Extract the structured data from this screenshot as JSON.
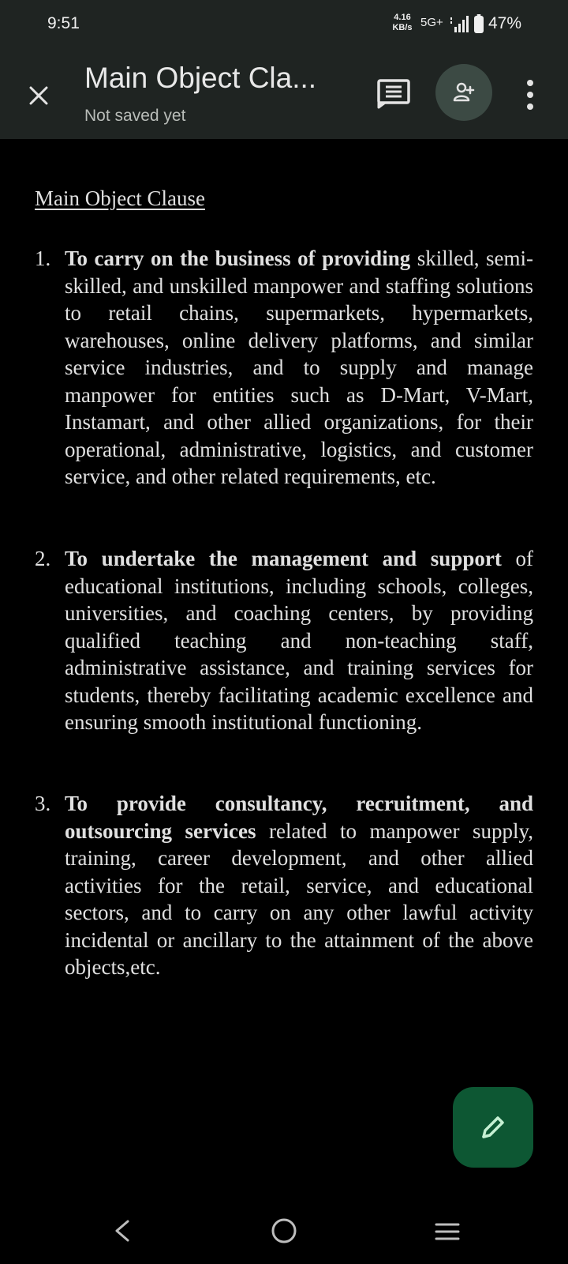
{
  "status_bar": {
    "time": "9:51",
    "net_speed_value": "4.16",
    "net_speed_unit": "KB/s",
    "network": "5G+",
    "battery": "47%"
  },
  "app_bar": {
    "title": "Main Object Cla...",
    "save_status": "Not saved yet",
    "icons": [
      "close-icon",
      "document-outline-icon",
      "add-person-icon",
      "more-vert-icon"
    ]
  },
  "document": {
    "heading": "Main Object Clause",
    "clauses": [
      {
        "number": "1.",
        "bold_lead": "To carry on the business of providing",
        "text": " skilled, semi-skilled, and unskilled manpower and staffing solutions to retail chains, supermarkets, hypermarkets, warehouses, online delivery platforms, and similar service industries, and to supply and manage manpower for entities such as D-Mart, V-Mart, Instamart, and other allied organizations, for their operational, administrative, logistics, and customer service, and other related requirements, etc."
      },
      {
        "number": "2.",
        "bold_lead": "To undertake the management and support",
        "text": " of educational institutions, including schools, colleges, universities, and coaching centers, by providing qualified teaching and non-teaching staff, administrative assistance, and training services for students, thereby facilitating academic excellence and ensuring smooth institutional functioning."
      },
      {
        "number": "3.",
        "bold_lead": "To provide consultancy, recruitment, and outsourcing services",
        "text": " related to manpower supply, training, career development, and other allied activities for the retail, service, and educational sectors, and to carry on any other lawful activity incidental or ancillary to the attainment of the above objects,etc."
      }
    ]
  },
  "fab": {
    "icon": "edit-pencil-icon"
  },
  "nav_bar": {
    "icons": [
      "back-icon",
      "home-icon",
      "recents-icon"
    ]
  },
  "colors": {
    "app_bar_bg": "#1f2422",
    "share_button_bg": "#3c4a44",
    "fab_bg": "#0d5733",
    "fab_icon": "#c6f0d3"
  }
}
